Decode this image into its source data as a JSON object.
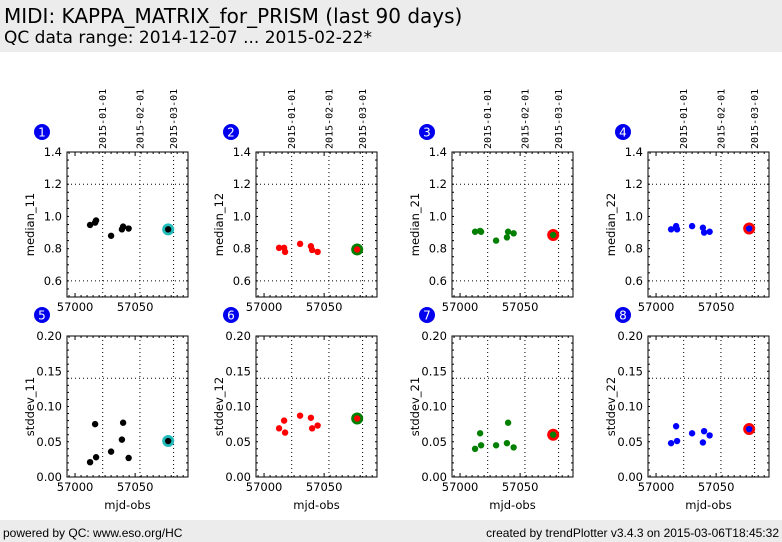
{
  "header": {
    "title": "MIDI: KAPPA_MATRIX_for_PRISM (last 90 days)",
    "subtitle": "QC data range: 2014-12-07 ... 2015-02-22*"
  },
  "footer": {
    "left": "powered by QC: www.eso.org/HC",
    "right": "created by trendPlotter v3.4.3 on 2015-03-06T18:45:32"
  },
  "chart_data": [
    {
      "type": "scatter",
      "panel": "1",
      "ylabel": "median_11",
      "xlabel": "",
      "xlim": [
        56993.3,
        57094
      ],
      "ylim": [
        0.5,
        1.4
      ],
      "yticks": [
        "0.6",
        "0.8",
        "1.0",
        "1.2",
        "1.4"
      ],
      "xticks": [
        "57000",
        "57050"
      ],
      "date_ticks": [
        "2015-01-01",
        "2015-02-01",
        "2015-03-01"
      ],
      "hgrid": [
        0.6,
        1.2
      ],
      "color": "#000000",
      "highlight_color": "#22bbbb",
      "x": [
        57012.5,
        57016.7,
        57017.5,
        57030,
        57039,
        57040,
        57044.6,
        57077.5
      ],
      "y": [
        0.947,
        0.962,
        0.975,
        0.88,
        0.92,
        0.937,
        0.925,
        0.92
      ]
    },
    {
      "type": "scatter",
      "panel": "2",
      "ylabel": "median_12",
      "xlabel": "",
      "xlim": [
        56993.3,
        57094
      ],
      "ylim": [
        0.5,
        1.4
      ],
      "yticks": [
        "0.6",
        "0.8",
        "1.0",
        "1.2",
        "1.4"
      ],
      "xticks": [
        "57000",
        "57050"
      ],
      "date_ticks": [
        "2015-01-01",
        "2015-02-01",
        "2015-03-01"
      ],
      "hgrid": [
        0.6,
        1.2
      ],
      "color": "#ff0000",
      "highlight_color": "#007f00",
      "x": [
        57012.5,
        57016.7,
        57017.5,
        57030,
        57039,
        57040,
        57044.6,
        57077.5
      ],
      "y": [
        0.805,
        0.805,
        0.78,
        0.83,
        0.815,
        0.792,
        0.78,
        0.795
      ]
    },
    {
      "type": "scatter",
      "panel": "3",
      "ylabel": "median_21",
      "xlabel": "",
      "xlim": [
        56993.3,
        57094
      ],
      "ylim": [
        0.5,
        1.4
      ],
      "yticks": [
        "0.6",
        "0.8",
        "1.0",
        "1.2",
        "1.4"
      ],
      "xticks": [
        "57000",
        "57050"
      ],
      "date_ticks": [
        "2015-01-01",
        "2015-02-01",
        "2015-03-01"
      ],
      "hgrid": [
        0.6,
        1.2
      ],
      "color": "#007f00",
      "highlight_color": "#ff0000",
      "x": [
        57012.5,
        57016.7,
        57017.5,
        57030,
        57039,
        57040,
        57044.6,
        57077.5
      ],
      "y": [
        0.905,
        0.91,
        0.905,
        0.85,
        0.87,
        0.905,
        0.895,
        0.885
      ]
    },
    {
      "type": "scatter",
      "panel": "4",
      "ylabel": "median_22",
      "xlabel": "",
      "xlim": [
        56993.3,
        57094
      ],
      "ylim": [
        0.5,
        1.4
      ],
      "yticks": [
        "0.6",
        "0.8",
        "1.0",
        "1.2",
        "1.4"
      ],
      "xticks": [
        "57000",
        "57050"
      ],
      "date_ticks": [
        "2015-01-01",
        "2015-02-01",
        "2015-03-01"
      ],
      "hgrid": [
        0.6,
        1.2
      ],
      "color": "#0000ff",
      "highlight_color": "#ff0000",
      "x": [
        57012.5,
        57016.7,
        57017.5,
        57030,
        57039,
        57040,
        57044.6,
        57077.5
      ],
      "y": [
        0.92,
        0.94,
        0.92,
        0.94,
        0.93,
        0.9,
        0.905,
        0.925
      ]
    },
    {
      "type": "scatter",
      "panel": "5",
      "ylabel": "stddev_11",
      "xlabel": "mjd-obs",
      "xlim": [
        56993.3,
        57094
      ],
      "ylim": [
        0.0,
        0.2
      ],
      "yticks": [
        "0.00",
        "0.05",
        "0.10",
        "0.15",
        "0.20"
      ],
      "xticks": [
        "57000",
        "57050"
      ],
      "date_ticks": [],
      "hgrid": [
        0.14
      ],
      "color": "#000000",
      "highlight_color": "#22bbbb",
      "x": [
        57012.5,
        57016.7,
        57017.5,
        57030,
        57039,
        57040,
        57044.6,
        57077.5
      ],
      "y": [
        0.021,
        0.075,
        0.028,
        0.036,
        0.053,
        0.077,
        0.027,
        0.051
      ]
    },
    {
      "type": "scatter",
      "panel": "6",
      "ylabel": "stddev_12",
      "xlabel": "mjd-obs",
      "xlim": [
        56993.3,
        57094
      ],
      "ylim": [
        0.0,
        0.2
      ],
      "yticks": [
        "0.00",
        "0.05",
        "0.10",
        "0.15",
        "0.20"
      ],
      "xticks": [
        "57000",
        "57050"
      ],
      "date_ticks": [],
      "hgrid": [
        0.14
      ],
      "color": "#ff0000",
      "highlight_color": "#007f00",
      "x": [
        57012.5,
        57016.7,
        57017.5,
        57030,
        57039,
        57040,
        57044.6,
        57077.5
      ],
      "y": [
        0.069,
        0.08,
        0.063,
        0.087,
        0.084,
        0.069,
        0.073,
        0.083
      ]
    },
    {
      "type": "scatter",
      "panel": "7",
      "ylabel": "stddev_21",
      "xlabel": "mjd-obs",
      "xlim": [
        56993.3,
        57094
      ],
      "ylim": [
        0.0,
        0.2
      ],
      "yticks": [
        "0.00",
        "0.05",
        "0.10",
        "0.15",
        "0.20"
      ],
      "xticks": [
        "57000",
        "57050"
      ],
      "date_ticks": [],
      "hgrid": [
        0.14
      ],
      "color": "#007f00",
      "highlight_color": "#ff0000",
      "x": [
        57012.5,
        57016.7,
        57017.5,
        57030,
        57039,
        57040,
        57044.6,
        57077.5
      ],
      "y": [
        0.04,
        0.062,
        0.045,
        0.045,
        0.048,
        0.077,
        0.042,
        0.06
      ]
    },
    {
      "type": "scatter",
      "panel": "8",
      "ylabel": "stddev_22",
      "xlabel": "mjd-obs",
      "xlim": [
        56993.3,
        57094
      ],
      "ylim": [
        0.0,
        0.2
      ],
      "yticks": [
        "0.00",
        "0.05",
        "0.10",
        "0.15",
        "0.20"
      ],
      "xticks": [
        "57000",
        "57050"
      ],
      "date_ticks": [],
      "hgrid": [
        0.14
      ],
      "color": "#0000ff",
      "highlight_color": "#ff0000",
      "x": [
        57012.5,
        57016.7,
        57017.5,
        57030,
        57039,
        57040,
        57044.6,
        57077.5
      ],
      "y": [
        0.048,
        0.072,
        0.051,
        0.062,
        0.049,
        0.065,
        0.059,
        0.068
      ]
    }
  ],
  "date_grid_mjd": [
    57023,
    57054,
    57082
  ],
  "badge_color": "#0000ee"
}
